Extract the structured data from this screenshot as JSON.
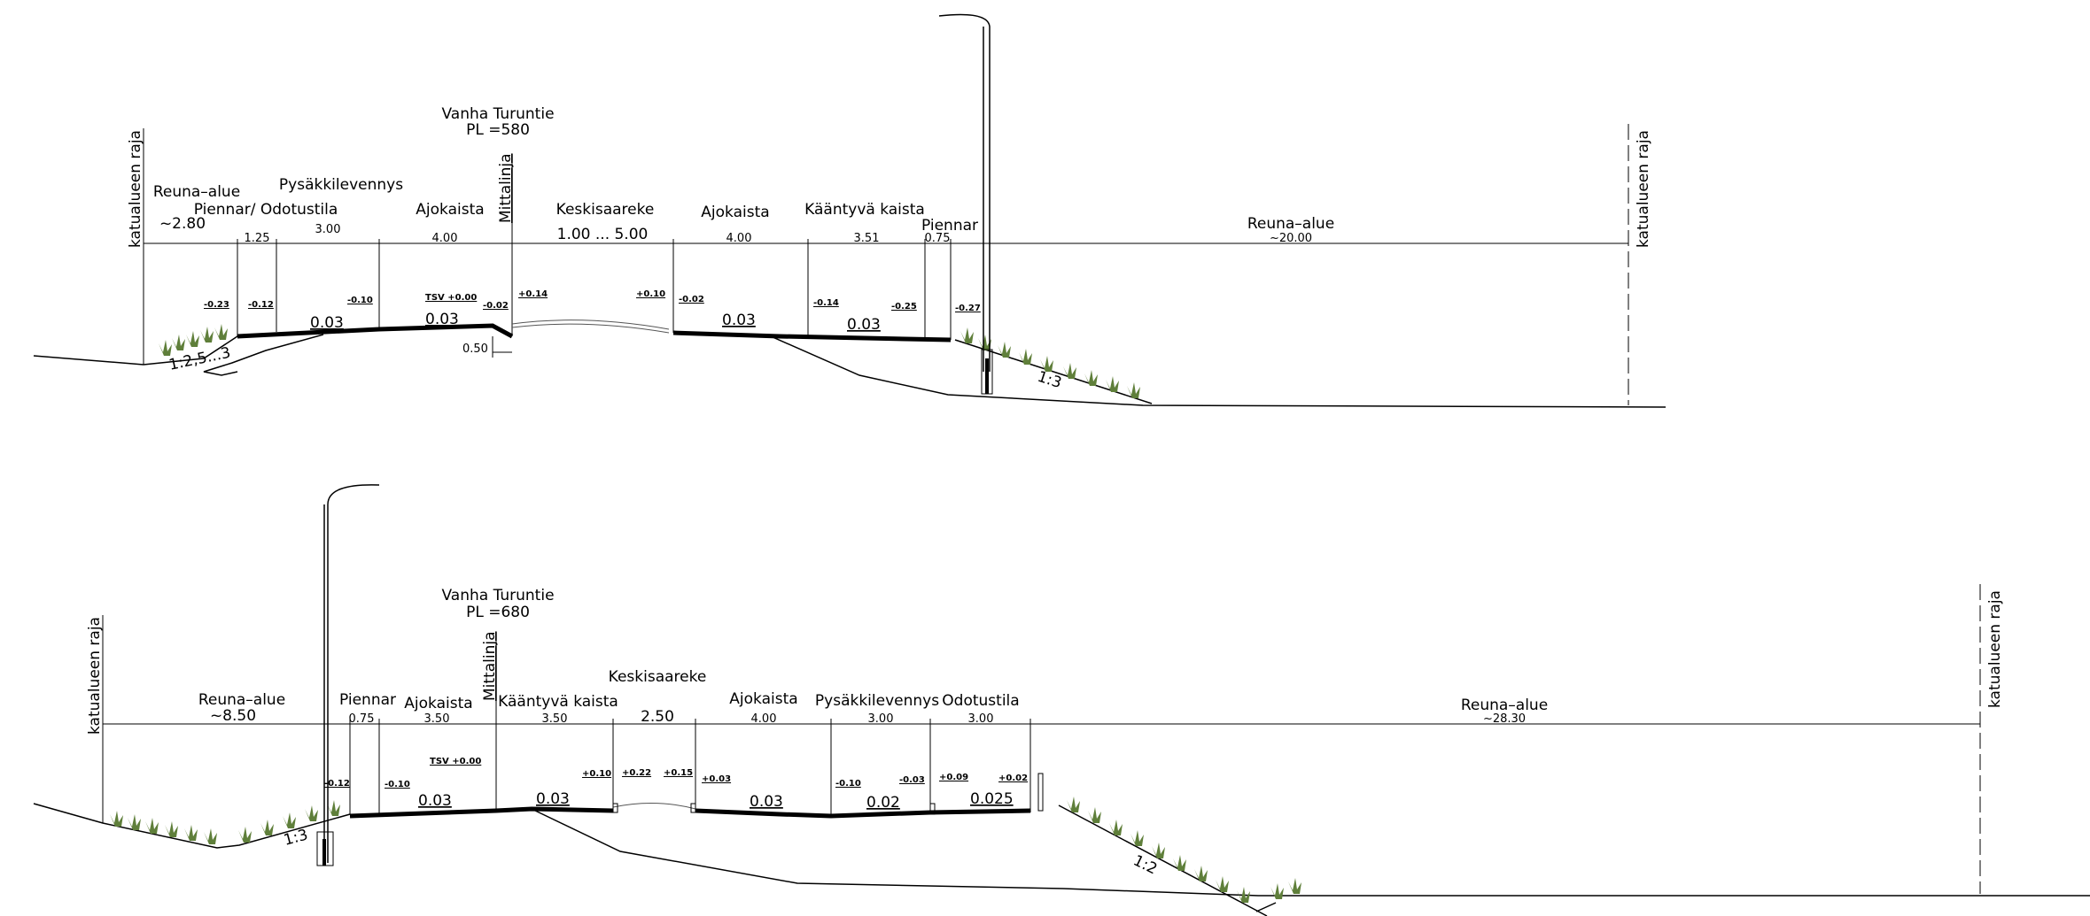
{
  "sections": [
    {
      "id": "pl580",
      "road_name": "Vanha Turuntie",
      "station": "PL =580",
      "boundary_left": "katualueen raja",
      "boundary_right": "katualueen raja",
      "centerline": "Mittalinja",
      "zones": [
        {
          "name": "Reuna–alue",
          "width": "~2.80"
        },
        {
          "name": "Piennar/ Odotustila",
          "width": "1.25"
        },
        {
          "name": "Pysäkkilevennys",
          "width": "3.00"
        },
        {
          "name": "Ajokaista",
          "width": "4.00"
        },
        {
          "name": "Keskisaareke",
          "width": "1.00 ... 5.00"
        },
        {
          "name": "Ajokaista",
          "width": "4.00"
        },
        {
          "name": "Kääntyvä kaista",
          "width": "3.51"
        },
        {
          "name": "Piennar",
          "width": "0.75"
        },
        {
          "name": "Reuna–alue",
          "width": "~20.00"
        }
      ],
      "heights": [
        "-0.23",
        "-0.12",
        "-0.10",
        "TSV +0.00",
        "-0.02",
        "+0.14",
        "+0.10",
        "-0.02",
        "-0.14",
        "-0.25",
        "-0.27"
      ],
      "cross_slopes": [
        "0.03",
        "0.03",
        "0.03",
        "0.03"
      ],
      "embankment_slopes": [
        "1:2,5...3",
        "1:3"
      ],
      "offset": "0.50"
    },
    {
      "id": "pl680",
      "road_name": "Vanha Turuntie",
      "station": "PL =680",
      "boundary_left": "katualueen raja",
      "boundary_right": "katualueen raja",
      "centerline": "Mittalinja",
      "zones": [
        {
          "name": "Reuna–alue",
          "width": "~8.50"
        },
        {
          "name": "Piennar",
          "width": "0.75"
        },
        {
          "name": "Ajokaista",
          "width": "3.50"
        },
        {
          "name": "Kääntyvä kaista",
          "width": "3.50"
        },
        {
          "name": "Keskisaareke",
          "width": "2.50"
        },
        {
          "name": "Ajokaista",
          "width": "4.00"
        },
        {
          "name": "Pysäkkilevennys",
          "width": "3.00"
        },
        {
          "name": "Odotustila",
          "width": "3.00"
        },
        {
          "name": "Reuna–alue",
          "width": "~28.30"
        }
      ],
      "heights": [
        "-0.12",
        "-0.10",
        "TSV +0.00",
        "+0.10",
        "+0.22",
        "+0.15",
        "+0.03",
        "-0.10",
        "-0.03",
        "+0.09",
        "+0.02"
      ],
      "cross_slopes": [
        "0.03",
        "0.03",
        "0.03",
        "0.02",
        "0.025"
      ],
      "embankment_slopes": [
        "1:3",
        "1:2"
      ]
    }
  ],
  "colors": {
    "line": "#000000",
    "grass": "#5f7f3a"
  }
}
